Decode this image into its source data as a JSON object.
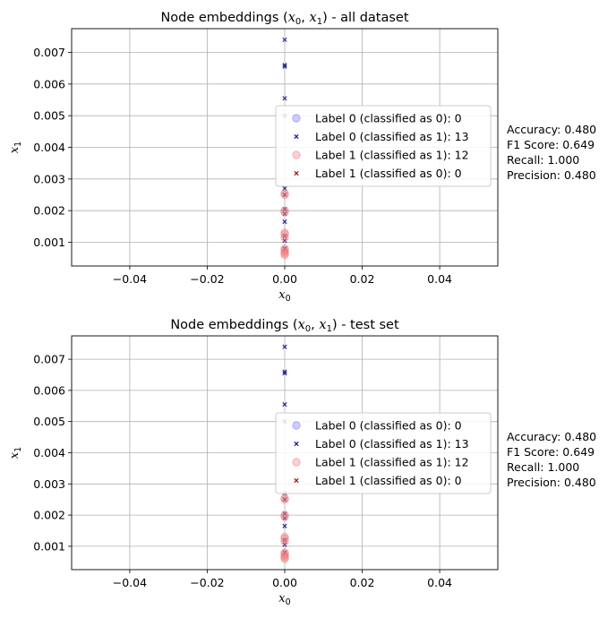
{
  "chart_data": [
    {
      "type": "scatter",
      "title": "Node embeddings (x₀, x₁) - all dataset",
      "title_parts": {
        "prefix": "Node embeddings (",
        "x0": "x",
        "x0_sub": "0",
        "sep": ", ",
        "x1": "x",
        "x1_sub": "1",
        "suffix": ") - all dataset"
      },
      "xlabel": "x₀",
      "ylabel": "x₁",
      "xlim": [
        -0.055,
        0.055
      ],
      "ylim": [
        0.00025,
        0.00775
      ],
      "xticks": [
        -0.04,
        -0.02,
        0.0,
        0.02,
        0.04
      ],
      "xtick_labels": [
        "−0.04",
        "−0.02",
        "0.00",
        "0.02",
        "0.04"
      ],
      "yticks": [
        0.001,
        0.002,
        0.003,
        0.004,
        0.005,
        0.006,
        0.007
      ],
      "ytick_labels": [
        "0.001",
        "0.002",
        "0.003",
        "0.004",
        "0.005",
        "0.006",
        "0.007"
      ],
      "grid": true,
      "legend_placement": "center-right",
      "series": [
        {
          "name": "Label 0 (classified as 0): 0",
          "marker": "circle",
          "color": "#6f6ff5",
          "x": [],
          "y": []
        },
        {
          "name": "Label 0 (classified as 1): 13",
          "marker": "x",
          "color": "#1f1f8c",
          "x": [
            0,
            0,
            0,
            0,
            0,
            0,
            0,
            0,
            0,
            0,
            0,
            0,
            0
          ],
          "y": [
            0.0074,
            0.0066,
            0.00655,
            0.00555,
            0.005,
            0.0027,
            0.0025,
            0.00205,
            0.0019,
            0.00165,
            0.0012,
            0.00105,
            0.0008
          ]
        },
        {
          "name": "Label 1 (classified as 1): 12",
          "marker": "circle",
          "color": "#f07a7a",
          "x": [
            0,
            0,
            0,
            0,
            0,
            0,
            0,
            0,
            0,
            0,
            0,
            0
          ],
          "y": [
            0.00255,
            0.0025,
            0.002,
            0.00195,
            0.0013,
            0.00125,
            0.00115,
            0.0008,
            0.00075,
            0.0007,
            0.00065,
            0.0006
          ]
        },
        {
          "name": "Label 1 (classified as 0): 0",
          "marker": "x",
          "color": "#a01818",
          "x": [],
          "y": []
        }
      ],
      "metrics": [
        "Accuracy: 0.480",
        "F1 Score: 0.649",
        "Recall: 1.000",
        "Precision: 0.480"
      ]
    },
    {
      "type": "scatter",
      "title": "Node embeddings (x₀, x₁) - test set",
      "title_parts": {
        "prefix": "Node embeddings (",
        "x0": "x",
        "x0_sub": "0",
        "sep": ", ",
        "x1": "x",
        "x1_sub": "1",
        "suffix": ") - test set"
      },
      "xlabel": "x₀",
      "ylabel": "x₁",
      "xlim": [
        -0.055,
        0.055
      ],
      "ylim": [
        0.00025,
        0.00775
      ],
      "xticks": [
        -0.04,
        -0.02,
        0.0,
        0.02,
        0.04
      ],
      "xtick_labels": [
        "−0.04",
        "−0.02",
        "0.00",
        "0.02",
        "0.04"
      ],
      "yticks": [
        0.001,
        0.002,
        0.003,
        0.004,
        0.005,
        0.006,
        0.007
      ],
      "ytick_labels": [
        "0.001",
        "0.002",
        "0.003",
        "0.004",
        "0.005",
        "0.006",
        "0.007"
      ],
      "grid": true,
      "legend_placement": "center-right",
      "series": [
        {
          "name": "Label 0 (classified as 0): 0",
          "marker": "circle",
          "color": "#6f6ff5",
          "x": [],
          "y": []
        },
        {
          "name": "Label 0 (classified as 1): 13",
          "marker": "x",
          "color": "#1f1f8c",
          "x": [
            0,
            0,
            0,
            0,
            0,
            0,
            0,
            0,
            0,
            0,
            0,
            0,
            0
          ],
          "y": [
            0.0074,
            0.0066,
            0.00655,
            0.00555,
            0.005,
            0.0027,
            0.0025,
            0.00205,
            0.0019,
            0.00165,
            0.0012,
            0.00105,
            0.0008
          ]
        },
        {
          "name": "Label 1 (classified as 1): 12",
          "marker": "circle",
          "color": "#f07a7a",
          "x": [
            0,
            0,
            0,
            0,
            0,
            0,
            0,
            0,
            0,
            0,
            0,
            0
          ],
          "y": [
            0.00255,
            0.0025,
            0.002,
            0.00195,
            0.0013,
            0.00125,
            0.00115,
            0.0008,
            0.00075,
            0.0007,
            0.00065,
            0.0006
          ]
        },
        {
          "name": "Label 1 (classified as 0): 0",
          "marker": "x",
          "color": "#a01818",
          "x": [],
          "y": []
        }
      ],
      "metrics": [
        "Accuracy: 0.480",
        "F1 Score: 0.649",
        "Recall: 1.000",
        "Precision: 0.480"
      ]
    }
  ]
}
